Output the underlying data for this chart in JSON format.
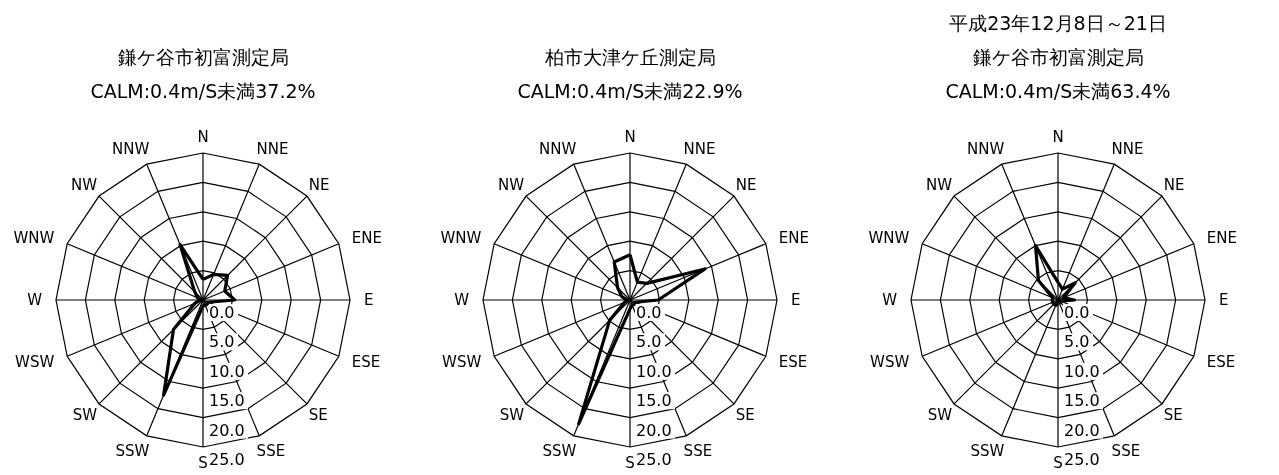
{
  "chart_data": [
    {
      "type": "radar",
      "title": "鎌ケ谷市初富測定局",
      "subtitle": "CALM:0.4m/S未満37.2%",
      "categories": [
        "N",
        "NNE",
        "NE",
        "ENE",
        "E",
        "ESE",
        "SE",
        "SSE",
        "S",
        "SSW",
        "SW",
        "WSW",
        "W",
        "WNW",
        "NW",
        "NNW"
      ],
      "ylim": [
        0,
        25
      ],
      "yticks": [
        {
          "value": 0,
          "label": "0.0"
        },
        {
          "value": 5,
          "label": "5.0"
        },
        {
          "value": 10,
          "label": "10.0"
        },
        {
          "value": 15,
          "label": "15.0"
        },
        {
          "value": 20,
          "label": "20.0"
        },
        {
          "value": 25,
          "label": "25.0"
        }
      ],
      "grid": true,
      "series": [
        {
          "color": "#000000",
          "values": [
            3.5,
            4.7,
            5.9,
            4.0,
            5.4,
            1.0,
            1.0,
            1.0,
            1.0,
            17.5,
            7.1,
            1.5,
            0.5,
            1.0,
            2.0,
            10.2
          ]
        }
      ]
    },
    {
      "type": "radar",
      "title": "柏市大津ケ丘測定局",
      "subtitle": "CALM:0.4m/S未満22.9%",
      "categories": [
        "N",
        "NNE",
        "NE",
        "ENE",
        "E",
        "ESE",
        "SE",
        "SSE",
        "S",
        "SSW",
        "SW",
        "WSW",
        "W",
        "WNW",
        "NW",
        "NNW"
      ],
      "ylim": [
        0,
        25
      ],
      "yticks": [
        {
          "value": 0,
          "label": "0.0"
        },
        {
          "value": 5,
          "label": "5.0"
        },
        {
          "value": 10,
          "label": "10.0"
        },
        {
          "value": 15,
          "label": "15.0"
        },
        {
          "value": 20,
          "label": "20.0"
        },
        {
          "value": 25,
          "label": "25.0"
        }
      ],
      "grid": true,
      "series": [
        {
          "color": "#000000",
          "values": [
            7.7,
            3.3,
            4.0,
            13.8,
            4.8,
            1.0,
            1.0,
            1.0,
            1.5,
            22.8,
            4.9,
            1.0,
            0.5,
            1.5,
            3.0,
            7.0
          ]
        }
      ]
    },
    {
      "type": "radar",
      "title": "鎌ケ谷市初富測定局",
      "subtitle": "CALM:0.4m/S未満63.4%",
      "annotations": [
        "平成23年12月8日～21日"
      ],
      "categories": [
        "N",
        "NNE",
        "NE",
        "ENE",
        "E",
        "ESE",
        "SE",
        "SSE",
        "S",
        "SSW",
        "SW",
        "WSW",
        "W",
        "WNW",
        "NW",
        "NNW"
      ],
      "ylim": [
        0,
        25
      ],
      "yticks": [
        {
          "value": 0,
          "label": "0.0"
        },
        {
          "value": 5,
          "label": "5.0"
        },
        {
          "value": 10,
          "label": "10.0"
        },
        {
          "value": 15,
          "label": "15.0"
        },
        {
          "value": 20,
          "label": "20.0"
        },
        {
          "value": 25,
          "label": "25.0"
        }
      ],
      "grid": true,
      "series": [
        {
          "color": "#000000",
          "values": [
            3.0,
            2.0,
            4.1,
            1.0,
            2.8,
            0.5,
            0.5,
            0.5,
            0.5,
            1.0,
            1.0,
            1.0,
            1.0,
            1.0,
            4.7,
            10.0
          ]
        }
      ]
    }
  ]
}
